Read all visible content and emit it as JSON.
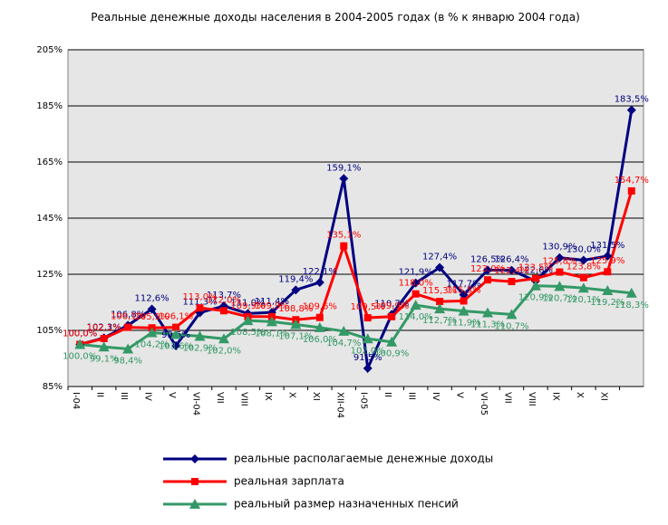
{
  "chart_data": {
    "type": "line",
    "title": "Реальные денежные доходы населения в 2004-2005 годах (в % к январю 2004 года)",
    "categories": [
      "I-04",
      "II",
      "III",
      "IV",
      "V",
      "VI-04",
      "VII",
      "VIII",
      "IX",
      "X",
      "XI",
      "XII-04",
      "I-05",
      "II",
      "III",
      "IV",
      "V",
      "VI-05",
      "VII",
      "VIII",
      "IX",
      "X",
      "XI",
      null
    ],
    "ylim": [
      85,
      205
    ],
    "yticks": [
      {
        "value": 85,
        "label": "85%"
      },
      {
        "value": 105,
        "label": "105%"
      },
      {
        "value": 125,
        "label": "125%"
      },
      {
        "value": 145,
        "label": "145%"
      },
      {
        "value": 165,
        "label": "165%"
      },
      {
        "value": 185,
        "label": "185%"
      },
      {
        "value": 205,
        "label": "205%"
      }
    ],
    "grid": true,
    "series": [
      {
        "name": "реальные располагаемые денежные доходы",
        "color": "#000080",
        "marker": "diamond",
        "values": [
          100.0,
          102.3,
          106.8,
          112.6,
          99.5,
          111.3,
          113.7,
          111.0,
          111.4,
          119.4,
          122.1,
          159.1,
          91.5,
          110.7,
          121.9,
          127.4,
          117.7,
          126.5,
          126.4,
          122.6,
          130.9,
          130.0,
          131.5,
          183.5
        ],
        "value_labels": [
          "100,0%",
          "102,3%",
          "106,8%",
          "112,6%",
          "99,5%",
          "111,3%",
          "113,7%",
          "111,0%",
          "111,4%",
          "119,4%",
          "122,1%",
          "159,1%",
          "91,5%",
          "110,7%",
          "121,9%",
          "127,4%",
          "117,7%",
          "126,5%",
          "126,4%",
          "122,6%",
          "130,9%",
          "130,0%",
          "131,5%",
          "183,5%"
        ]
      },
      {
        "name": "реальная зарплата",
        "color": "#ff0000",
        "marker": "square",
        "values": [
          100.0,
          102.1,
          106.1,
          105.9,
          106.1,
          113.0,
          112.0,
          109.9,
          109.9,
          108.8,
          109.6,
          135.1,
          109.5,
          109.9,
          118.0,
          115.3,
          115.5,
          123.0,
          122.4,
          123.5,
          125.8,
          123.8,
          125.9,
          154.7
        ],
        "value_labels": [
          "100,0%",
          "102,1%",
          "106,1%",
          "105,9%",
          "106,1%",
          "113,0%",
          "112,0%",
          "109,9%",
          "109,9%",
          "108,8%",
          "109,6%",
          "135,1%",
          "109,5%",
          "109,9%",
          "118,0%",
          "115,3%",
          "115,5%",
          "123,0%",
          "122,4%",
          "123,5%",
          "125,8%",
          "123,8%",
          "125,9%",
          "154,7%"
        ]
      },
      {
        "name": "реальный размер назначенных пенсий",
        "color": "#339966",
        "marker": "triangle",
        "values": [
          100.0,
          99.1,
          98.4,
          104.2,
          103.6,
          102.9,
          102.0,
          108.5,
          108.1,
          107.1,
          106.0,
          104.7,
          102.0,
          100.9,
          114.0,
          112.7,
          111.9,
          111.3,
          110.7,
          120.9,
          120.7,
          120.1,
          119.2,
          118.3
        ],
        "value_labels": [
          "100,0%",
          "99,1%",
          "98,4%",
          "104,2%",
          "103,6%",
          "102,9%",
          "102,0%",
          "108,5%",
          "108,1%",
          "107,1%",
          "106,0%",
          "104,7%",
          "102,0%",
          "100,9%",
          "114,0%",
          "112,7%",
          "111,9%",
          "111,3%",
          "110,7%",
          "120,9%",
          "120,7%",
          "120,1%",
          "119,2%",
          "118,3%"
        ]
      }
    ]
  }
}
